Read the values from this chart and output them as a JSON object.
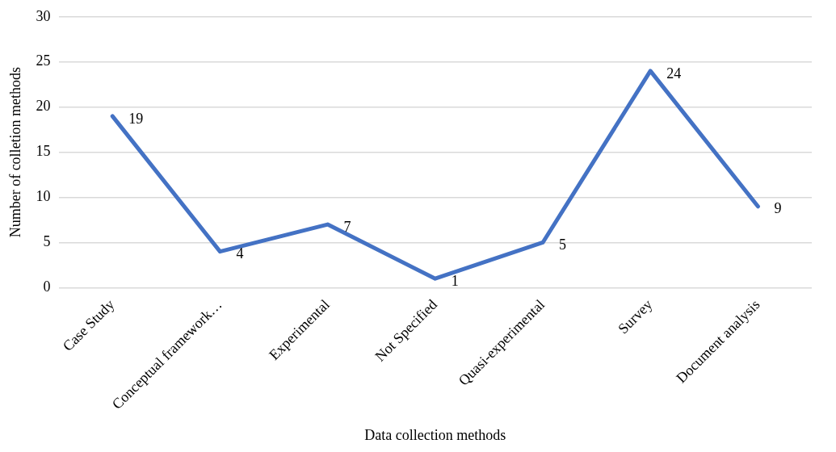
{
  "chart_data": {
    "type": "line",
    "xlabel": "Data collection methods",
    "ylabel": "Number of colletion methods",
    "categories": [
      "Case Study",
      "Conceptual framework…",
      "Experimental",
      "Not Specified",
      "Quasi-experimental",
      "Survey",
      "Document analysis"
    ],
    "series": [
      {
        "color": "#4472c4",
        "values": [
          19,
          4,
          7,
          1,
          5,
          24,
          9
        ]
      }
    ],
    "ylim": [
      0,
      30
    ],
    "yticks": [
      0,
      5,
      10,
      15,
      20,
      25,
      30
    ],
    "grid": "y",
    "legend": false,
    "marker": "none",
    "line_style": "solid",
    "data_labels": true
  }
}
